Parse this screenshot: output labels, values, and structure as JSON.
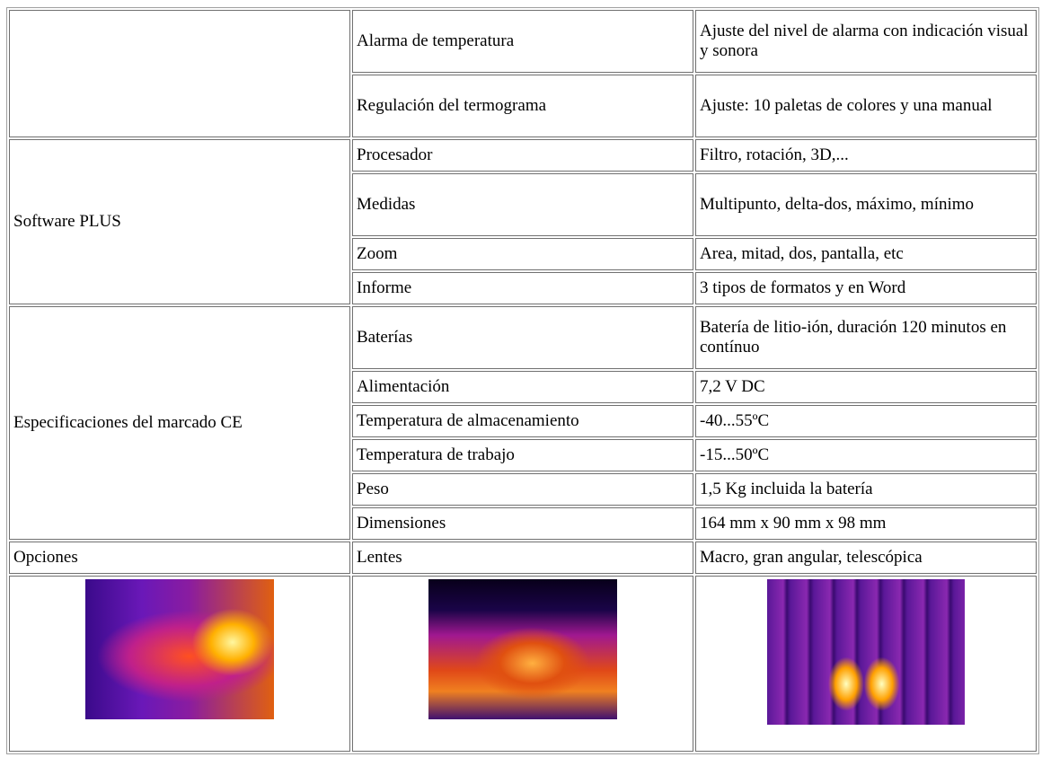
{
  "table": {
    "groups": [
      {
        "items": [
          [
            "Alarma de temperatura",
            "Ajuste del nivel de alarma con indicación visual y sonora"
          ],
          [
            "Regulación del termograma",
            "Ajuste: 10 paletas de colores y una manual"
          ]
        ]
      },
      {
        "label": "Software PLUS",
        "items": [
          [
            "Procesador",
            "Filtro, rotación, 3D,..."
          ],
          [
            "Medidas",
            "Multipunto, delta-dos, máximo, mínimo"
          ],
          [
            "Zoom",
            "Area, mitad, dos, pantalla, etc"
          ],
          [
            "Informe",
            "3 tipos de formatos y en Word"
          ]
        ]
      },
      {
        "label": "Especificaciones del marcado CE",
        "items": [
          [
            "Baterías",
            "Batería de litio-ión, duración 120 minutos en contínuo"
          ],
          [
            "Alimentación",
            "7,2 V DC"
          ],
          [
            "Temperatura de almacenamiento",
            "-40...55ºC"
          ],
          [
            "Temperatura de trabajo",
            "-15...50ºC"
          ],
          [
            "Peso",
            "1,5 Kg incluida la batería"
          ],
          [
            "Dimensiones",
            "164 mm x 90 mm x 98 mm"
          ]
        ]
      },
      {
        "label": "Opciones",
        "items": [
          [
            "Lentes",
            "Macro, gran angular, telescópica"
          ]
        ]
      }
    ]
  }
}
